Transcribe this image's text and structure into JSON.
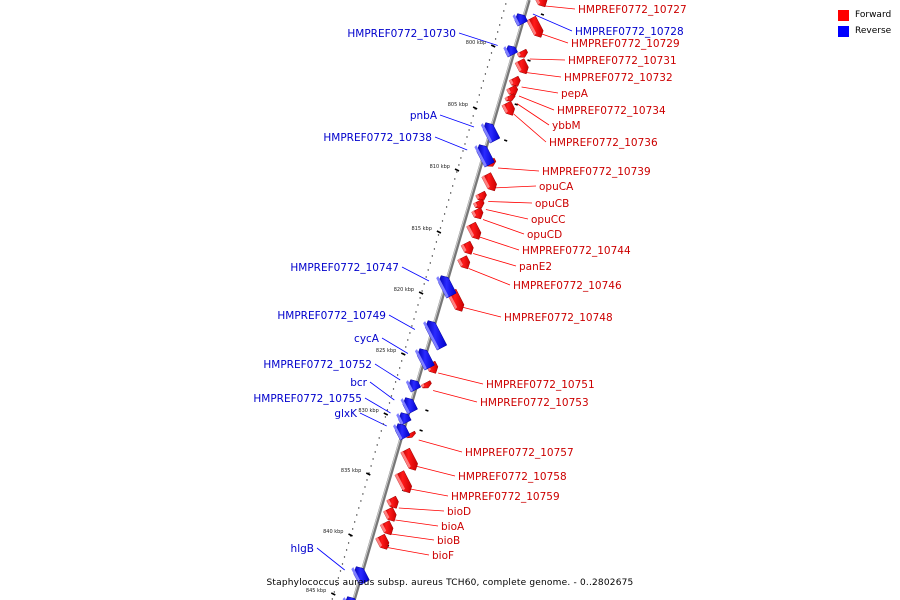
{
  "legend": {
    "forward_label": "Forward",
    "reverse_label": "Reverse",
    "forward_color": "#ff0000",
    "reverse_color": "#0000ff"
  },
  "caption": "Staphylococcus aureus subsp. aureus TCH60, complete genome. - 0..2802675",
  "ticks": [
    "800 kbp",
    "805 kbp",
    "810 kbp",
    "815 kbp",
    "820 kbp",
    "825 kbp",
    "830 kbp",
    "835 kbp",
    "840 kbp",
    "845 kbp"
  ],
  "forward_genes": [
    "HMPREF0772_10727",
    "HMPREF0772_10729",
    "HMPREF0772_10731",
    "HMPREF0772_10732",
    "pepA",
    "HMPREF0772_10734",
    "ybbM",
    "HMPREF0772_10736",
    "HMPREF0772_10739",
    "opuCA",
    "opuCB",
    "opuCC",
    "opuCD",
    "HMPREF0772_10744",
    "panE2",
    "HMPREF0772_10746",
    "HMPREF0772_10748",
    "HMPREF0772_10751",
    "HMPREF0772_10753",
    "HMPREF0772_10757",
    "HMPREF0772_10758",
    "HMPREF0772_10759",
    "bioD",
    "bioA",
    "bioB",
    "bioF"
  ],
  "reverse_genes": [
    "HMPREF0772_10728",
    "HMPREF0772_10730",
    "pnbA",
    "HMPREF0772_10738",
    "HMPREF0772_10747",
    "HMPREF0772_10749",
    "cycA",
    "HMPREF0772_10752",
    "bcr",
    "HMPREF0772_10755",
    "glxK",
    "hlgB"
  ]
}
